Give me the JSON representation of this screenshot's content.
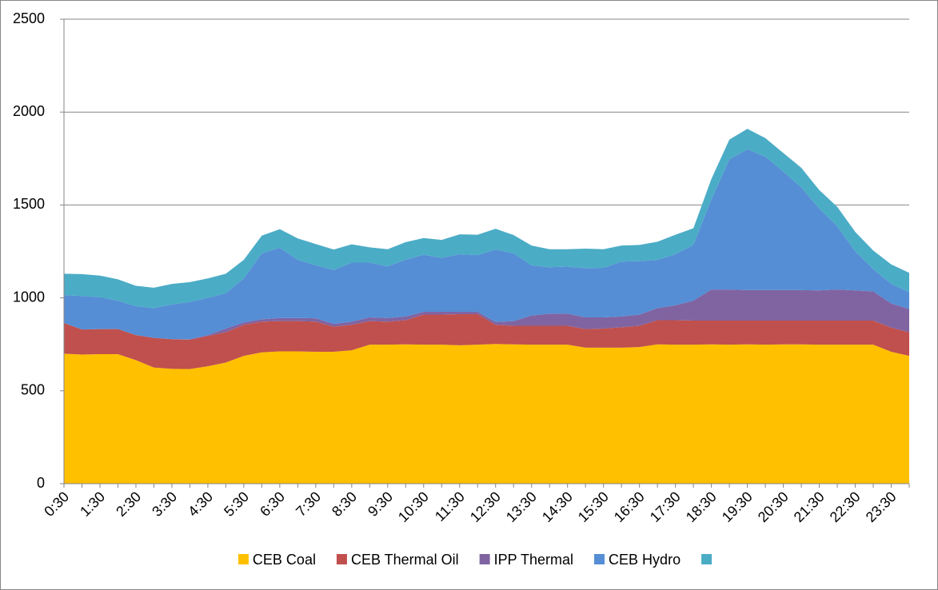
{
  "chart_data": {
    "type": "stacked-area",
    "categories": [
      "0:30",
      null,
      "1:30",
      null,
      "2:30",
      null,
      "3:30",
      null,
      "4:30",
      null,
      "5:30",
      null,
      "6:30",
      null,
      "7:30",
      null,
      "8:30",
      null,
      "9:30",
      null,
      "10:30",
      null,
      "11:30",
      null,
      "12:30",
      null,
      "13:30",
      null,
      "14:30",
      null,
      "15:30",
      null,
      "16:30",
      null,
      "17:30",
      null,
      "18:30",
      null,
      "19:30",
      null,
      "20:30",
      null,
      "21:30",
      null,
      "22:30",
      null,
      "23:30",
      null
    ],
    "series": [
      {
        "name": "CEB Coal",
        "color": "#ffc000",
        "values": [
          700,
          695,
          697,
          697,
          665,
          625,
          618,
          617,
          632,
          652,
          688,
          707,
          712,
          712,
          710,
          710,
          718,
          748,
          748,
          750,
          748,
          748,
          745,
          748,
          752,
          750,
          748,
          748,
          748,
          732,
          732,
          732,
          735,
          750,
          748,
          748,
          750,
          748,
          750,
          748,
          750,
          750,
          748,
          748,
          748,
          748,
          710,
          688
        ]
      },
      {
        "name": "CEB Thermal Oil",
        "color": "#c0504d",
        "values": [
          165,
          135,
          135,
          135,
          135,
          160,
          160,
          158,
          163,
          163,
          167,
          165,
          163,
          163,
          162,
          135,
          137,
          127,
          124,
          130,
          162,
          162,
          167,
          164,
          103,
          100,
          102,
          102,
          102,
          100,
          103,
          110,
          115,
          130,
          132,
          130,
          128,
          130,
          128,
          130,
          128,
          128,
          130,
          130,
          130,
          130,
          130,
          127
        ]
      },
      {
        "name": "IPP Thermal",
        "color": "#8064a2",
        "values": [
          0,
          0,
          0,
          0,
          0,
          0,
          0,
          3,
          5,
          20,
          13,
          13,
          17,
          17,
          18,
          15,
          17,
          20,
          20,
          20,
          15,
          15,
          13,
          13,
          15,
          25,
          55,
          65,
          65,
          63,
          60,
          58,
          60,
          65,
          80,
          107,
          167,
          167,
          164,
          164,
          164,
          164,
          162,
          167,
          162,
          157,
          130,
          125
        ]
      },
      {
        "name": "CEB Hydro",
        "color": "#558ed5",
        "values": [
          150,
          180,
          171,
          153,
          155,
          160,
          187,
          200,
          200,
          190,
          237,
          355,
          378,
          313,
          285,
          290,
          318,
          295,
          278,
          305,
          307,
          290,
          310,
          305,
          390,
          365,
          270,
          250,
          253,
          265,
          267,
          295,
          288,
          260,
          275,
          300,
          485,
          700,
          758,
          718,
          638,
          553,
          440,
          340,
          210,
          120,
          105,
          90
        ]
      },
      {
        "name": null,
        "color": "#4bacc6",
        "values": [
          115,
          118,
          117,
          115,
          110,
          110,
          110,
          107,
          105,
          105,
          100,
          95,
          100,
          115,
          115,
          110,
          98,
          82,
          92,
          95,
          90,
          97,
          107,
          110,
          112,
          98,
          107,
          97,
          94,
          105,
          100,
          87,
          87,
          97,
          105,
          90,
          110,
          107,
          110,
          100,
          100,
          105,
          100,
          105,
          105,
          100,
          105,
          105
        ]
      }
    ],
    "ylim": [
      0,
      2500
    ],
    "yticks": [
      0,
      500,
      1000,
      1500,
      2000,
      2500
    ],
    "grid": true,
    "legend": "bottom"
  }
}
